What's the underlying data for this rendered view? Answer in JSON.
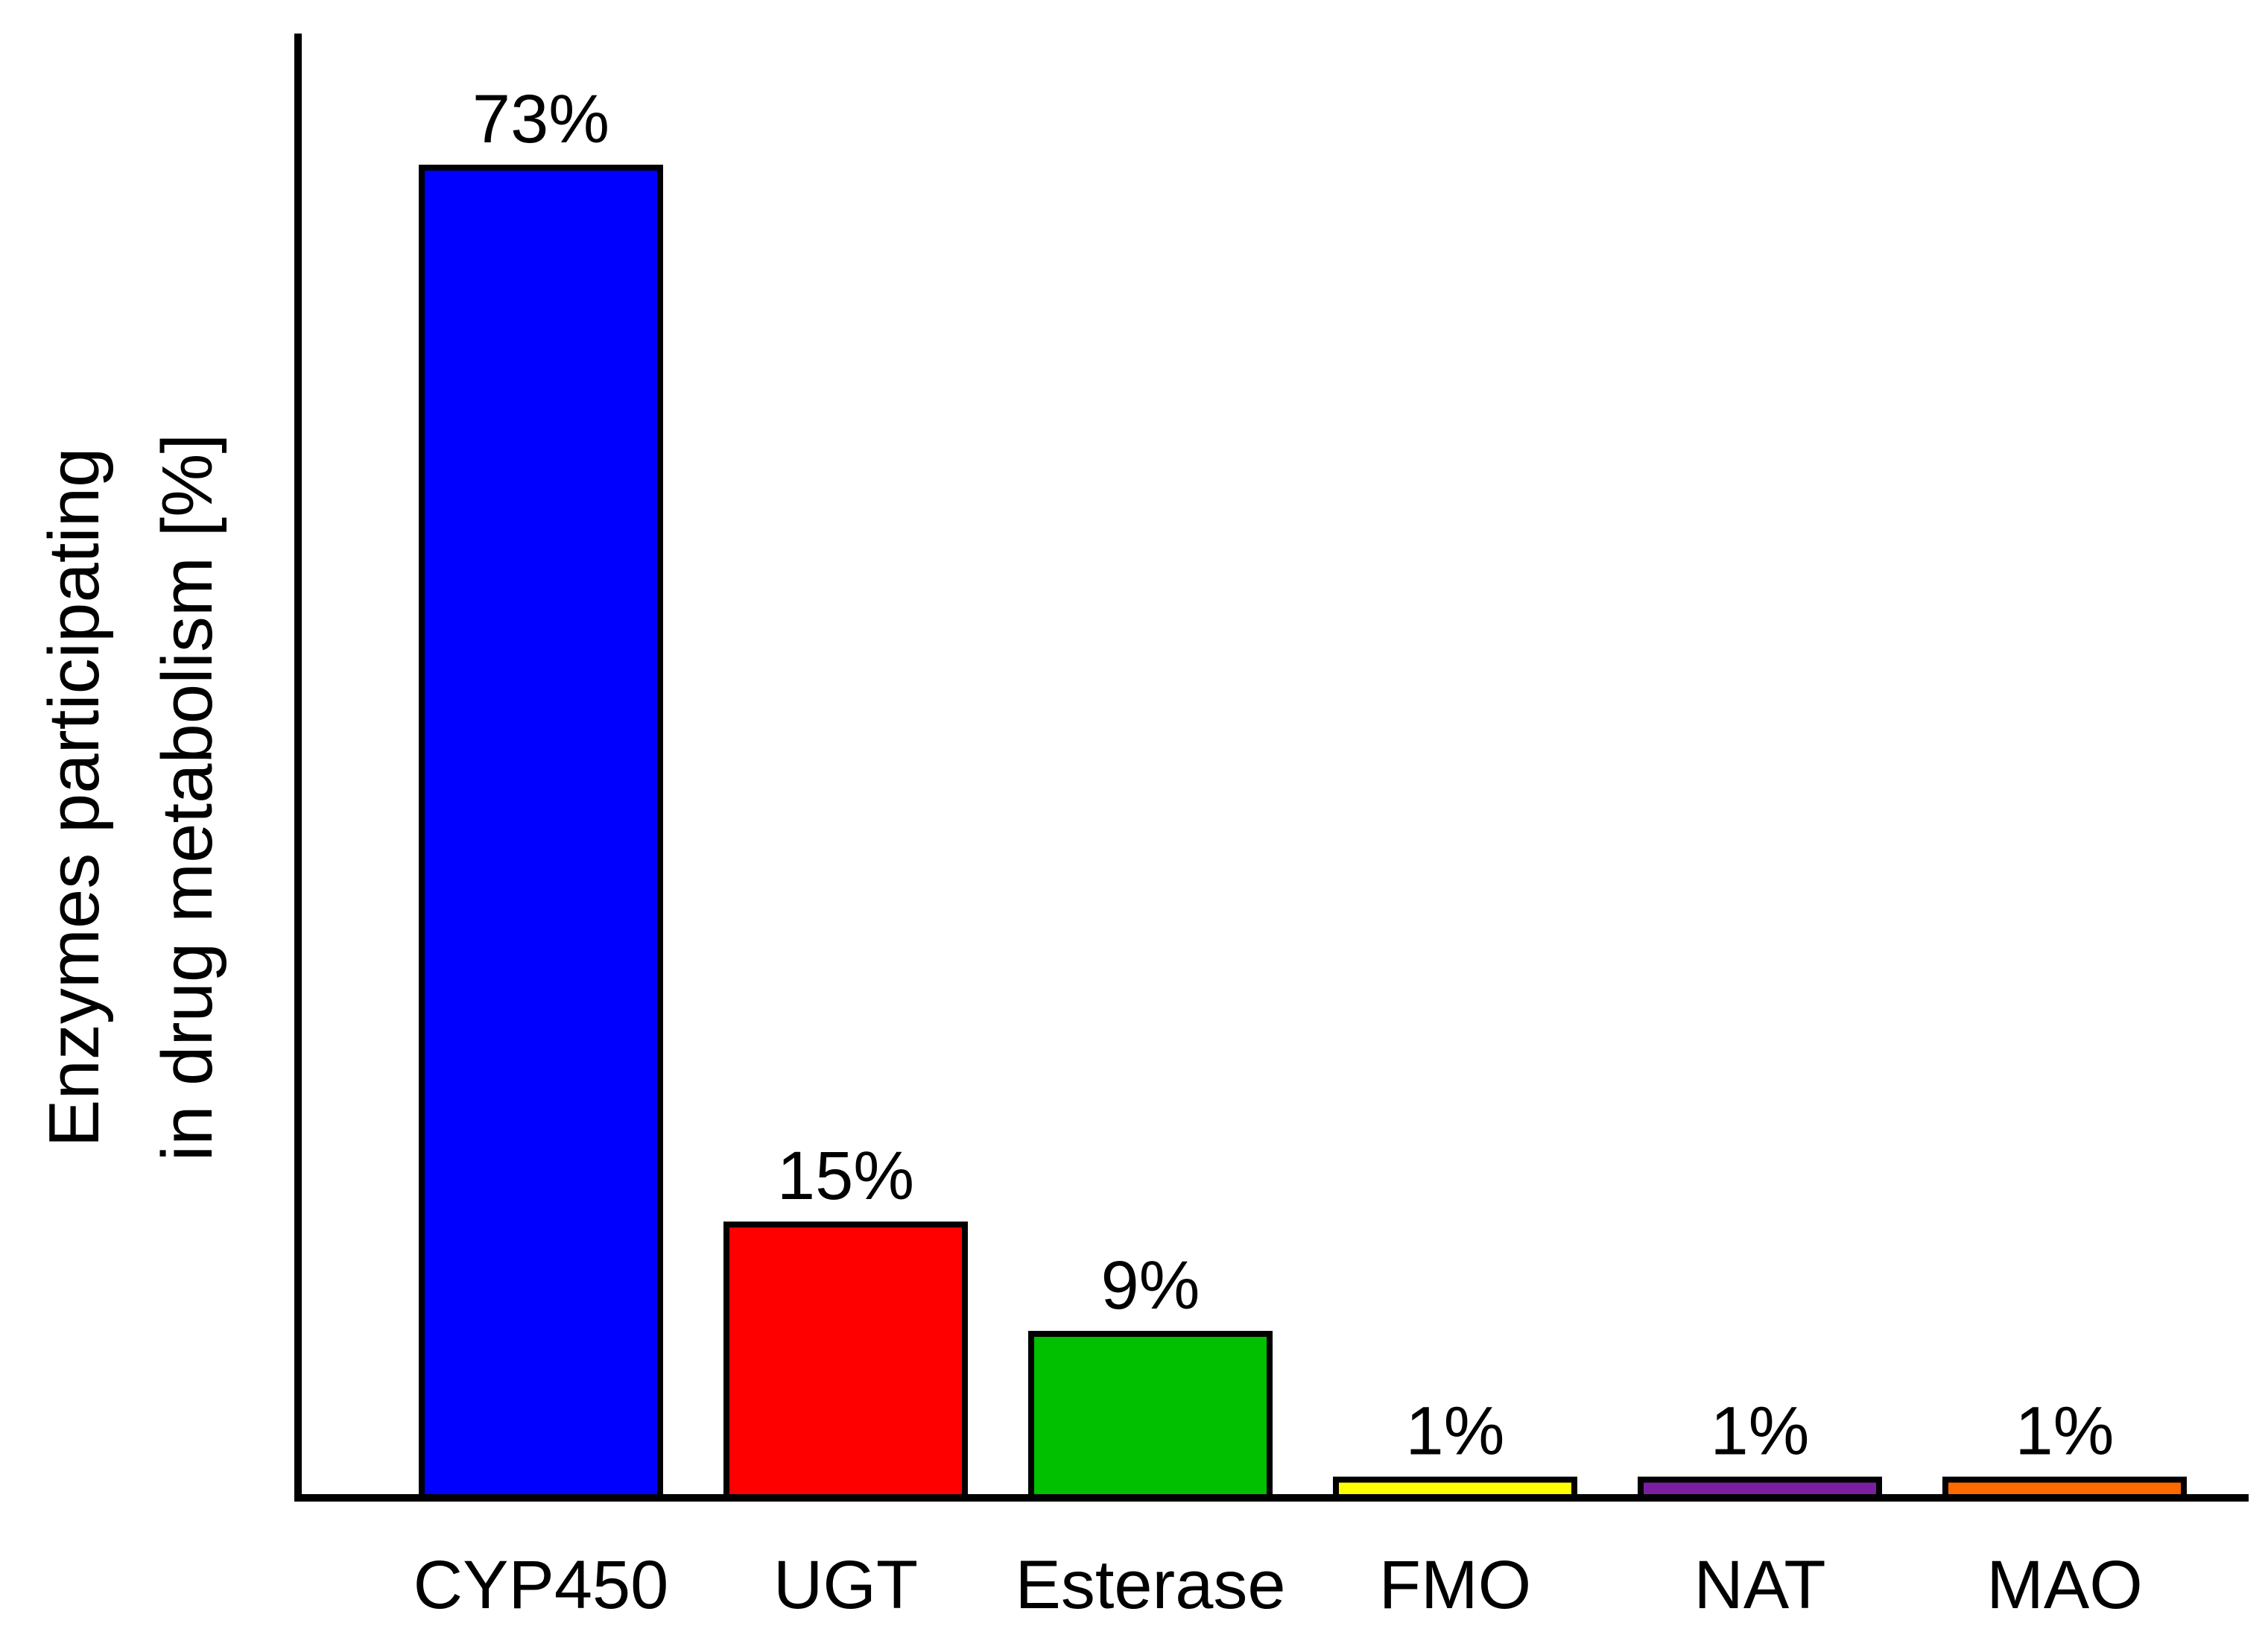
{
  "chart_data": {
    "type": "bar",
    "categories": [
      "CYP450",
      "UGT",
      "Esterase",
      "FMO",
      "NAT",
      "MAO"
    ],
    "values": [
      73,
      15,
      9,
      1,
      1,
      1
    ],
    "data_labels": [
      "73%",
      "15%",
      "9%",
      "1%",
      "1%",
      "1%"
    ],
    "colors": [
      "#0000ff",
      "#ff0000",
      "#00c000",
      "#ffff00",
      "#7a1fa2",
      "#ff6a00"
    ],
    "title": "",
    "xlabel": "",
    "ylabel": "Enzymes participating in drug metabolism [%]",
    "ylabel_lines": [
      "Enzymes participating",
      "in drug metabolism [%]"
    ],
    "ylim": [
      0,
      80
    ],
    "grid": false,
    "legend": "none"
  }
}
